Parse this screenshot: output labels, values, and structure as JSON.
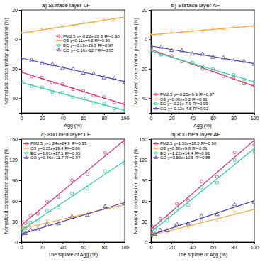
{
  "chart_data": [
    {
      "type": "scatter",
      "title": "a) Surface layer LF",
      "x_label": "Agg (%)",
      "y_label": "Normalized concentration perturbation (%)",
      "x": [
        0,
        10,
        20,
        30,
        40,
        50,
        60,
        70,
        80,
        90,
        100
      ],
      "xlim": [
        0,
        100
      ],
      "xticks": [
        0,
        20,
        40,
        60,
        80,
        100
      ],
      "ylim": [
        -50,
        20
      ],
      "yticks": [
        -40,
        -20,
        0,
        20
      ],
      "legend": "right",
      "fit_x": [
        0,
        100
      ],
      "series": [
        {
          "name": "PM2.5",
          "equation": "y=-0.22x-22.3",
          "r2": "R²=0.98",
          "color": "#e0306a",
          "marker": "circle",
          "line_style": "solid",
          "values": [
            -21.5,
            -25.2,
            -26.0,
            -29.6,
            -30.4,
            -33.9,
            -35.0,
            -38.3,
            -39.2,
            -42.8,
            -44.0
          ],
          "fit": [
            -22.3,
            -44.3
          ]
        },
        {
          "name": "O3",
          "equation": "y=0.11x+4.2",
          "r2": "R²=0.96",
          "color": "#f5a540",
          "marker": "cross",
          "line_style": "solid",
          "values": [
            4.8,
            5.0,
            6.9,
            7.2,
            9.1,
            9.4,
            11.2,
            11.6,
            13.4,
            13.8,
            15.5
          ],
          "fit": [
            4.2,
            15.2
          ]
        },
        {
          "name": "EC",
          "equation": "y=-0.19x-29.3",
          "r2": "R²=0.97",
          "color": "#2ecf9e",
          "marker": "square",
          "line_style": "solid",
          "values": [
            -28.5,
            -31.8,
            -32.6,
            -35.7,
            -36.3,
            -39.4,
            -40.1,
            -43.2,
            -44.0,
            -46.9,
            -48.0
          ],
          "fit": [
            -29.3,
            -48.3
          ]
        },
        {
          "name": "CO",
          "equation": "y=-0.16x-12.7",
          "r2": "R²=0.95",
          "color": "#4b3ba0",
          "marker": "triangle",
          "line_style": "solid",
          "values": [
            -13.3,
            -14.0,
            -16.5,
            -17.0,
            -19.8,
            -20.2,
            -22.9,
            -23.4,
            -26.1,
            -26.7,
            -29.1
          ],
          "fit": [
            -12.7,
            -28.7
          ]
        }
      ]
    },
    {
      "type": "scatter",
      "title": "b) Surface layer AF",
      "x_label": "Agg (%)",
      "y_label": "Normalized concentration perturbation (%)",
      "x": [
        0,
        10,
        20,
        30,
        40,
        50,
        60,
        70,
        80,
        90,
        100
      ],
      "xlim": [
        0,
        100
      ],
      "xticks": [
        0,
        20,
        40,
        60,
        80,
        100
      ],
      "ylim": [
        -50,
        20
      ],
      "yticks": [
        -40,
        -20,
        0,
        20
      ],
      "legend": "lower left",
      "fit_x": [
        0,
        100
      ],
      "series": [
        {
          "name": "PM2.5",
          "equation": "y=-0.25x-6.9",
          "r2": "R²=0.97",
          "color": "#e0306a",
          "marker": "circle",
          "line_style": "solid",
          "values": [
            -6.2,
            -10.0,
            -11.3,
            -15.0,
            -16.3,
            -20.1,
            -21.3,
            -25.0,
            -26.2,
            -30.1,
            -31.5
          ],
          "fit": [
            -6.9,
            -31.9
          ]
        },
        {
          "name": "O3",
          "equation": "y=0.06x+3.2",
          "r2": "R²=0.91",
          "color": "#f5a540",
          "marker": "cross",
          "line_style": "solid",
          "values": [
            3.6,
            3.5,
            4.9,
            4.7,
            6.0,
            5.9,
            7.2,
            7.0,
            8.4,
            8.2,
            9.5
          ],
          "fit": [
            3.2,
            9.2
          ]
        },
        {
          "name": "EC",
          "equation": "y=-0.21x-7.9",
          "r2": "R²=0.99",
          "color": "#2ecf9e",
          "marker": "square",
          "line_style": "solid",
          "values": [
            -7.3,
            -10.5,
            -11.6,
            -14.8,
            -15.8,
            -19.0,
            -20.0,
            -23.1,
            -24.2,
            -27.4,
            -28.6
          ],
          "fit": [
            -7.9,
            -28.9
          ]
        },
        {
          "name": "CO",
          "equation": "y=-0.12x-4.5",
          "r2": "R²=0.92",
          "color": "#4b3ba0",
          "marker": "triangle",
          "line_style": "solid",
          "values": [
            -5.0,
            -5.3,
            -7.5,
            -7.7,
            -9.9,
            -10.1,
            -12.2,
            -12.5,
            -14.7,
            -14.9,
            -16.9
          ],
          "fit": [
            -4.5,
            -16.5
          ]
        }
      ]
    },
    {
      "type": "scatter",
      "title": "c) 800 hPa layer LF",
      "x_label": "The square of Agg (%)",
      "y_label": "Normalized concentration perturbation (%)",
      "x": [
        0,
        1,
        4,
        9,
        16,
        25,
        36,
        49,
        64,
        81,
        100
      ],
      "xlim": [
        0,
        100
      ],
      "xticks": [
        0,
        20,
        40,
        60,
        80,
        100
      ],
      "ylim": [
        0,
        150
      ],
      "yticks": [
        0,
        30,
        60,
        90,
        120,
        150
      ],
      "legend": "upper left",
      "fit_x": [
        0,
        100
      ],
      "series": [
        {
          "name": "PM2.5",
          "equation": "y=1.24x+24.9",
          "r2": "R²=0.95",
          "color": "#e0306a",
          "marker": "circle",
          "line_style": "solid",
          "values": [
            23.0,
            28.5,
            27.5,
            38.9,
            41.5,
            59.2,
            66.0,
            90.1,
            99.0,
            130.2,
            145.0
          ],
          "fit": [
            24.9,
            148.9
          ]
        },
        {
          "name": "O3",
          "equation": "y=0.35x+19.4",
          "r2": "R²=0.86",
          "color": "#f5a540",
          "marker": "cross",
          "line_style": "solid",
          "values": [
            18.0,
            21.5,
            19.9,
            24.5,
            23.2,
            30.5,
            30.1,
            39.4,
            39.5,
            50.7,
            52.6
          ],
          "fit": [
            19.4,
            54.4
          ]
        },
        {
          "name": "EC",
          "equation": "y=1.01x+17.1",
          "r2": "R²=0.95",
          "color": "#2ecf9e",
          "marker": "square",
          "line_style": "solid",
          "values": [
            15.5,
            20.2,
            19.8,
            28.8,
            31.0,
            45.9,
            50.5,
            70.8,
            78.0,
            103.5,
            115.0
          ],
          "fit": [
            17.1,
            118.1
          ]
        },
        {
          "name": "CO",
          "equation": "y=0.46x+11.7",
          "r2": "R²=0.97",
          "color": "#4b3ba0",
          "marker": "triangle",
          "line_style": "solid",
          "values": [
            10.5,
            13.8,
            12.6,
            17.6,
            17.9,
            25.4,
            26.8,
            36.5,
            39.2,
            51.4,
            55.9
          ],
          "fit": [
            11.7,
            57.7
          ]
        }
      ]
    },
    {
      "type": "scatter",
      "title": "d) 800 hPa layer AF",
      "x_label": "The square of Agg (%)",
      "y_label": "Normalized concentration perturbation (%)",
      "x": [
        0,
        1,
        4,
        9,
        16,
        25,
        36,
        49,
        64,
        81,
        100
      ],
      "xlim": [
        0,
        100
      ],
      "xticks": [
        0,
        20,
        40,
        60,
        80,
        100
      ],
      "ylim": [
        0,
        150
      ],
      "yticks": [
        0,
        30,
        60,
        90,
        120,
        150
      ],
      "legend": "upper left",
      "fit_x": [
        0,
        100
      ],
      "series": [
        {
          "name": "PM2.5",
          "equation": "y=1.30x+18.5",
          "r2": "R²=0.90",
          "color": "#e0306a",
          "marker": "circle",
          "line_style": "solid",
          "values": [
            16.2,
            22.9,
            21.5,
            34.0,
            36.5,
            55.8,
            61.0,
            88.5,
            95.2,
            130.6,
            141.8
          ],
          "fit": [
            18.5,
            148.5
          ]
        },
        {
          "name": "O3",
          "equation": "y=0.38x+9.8",
          "r2": "R²=0.81",
          "color": "#f5a540",
          "marker": "cross",
          "line_style": "solid",
          "values": [
            8.5,
            12.0,
            10.4,
            15.6,
            14.2,
            22.4,
            21.3,
            31.5,
            31.8,
            44.2,
            45.3
          ],
          "fit": [
            9.8,
            47.8
          ]
        },
        {
          "name": "EC",
          "equation": "y=1.22x+14.4",
          "r2": "R²=0.91",
          "color": "#2ecf9e",
          "marker": "square",
          "line_style": "solid",
          "values": [
            12.8,
            18.1,
            17.9,
            28.6,
            31.2,
            49.5,
            54.1,
            79.8,
            86.7,
            119.5,
            131.0
          ],
          "fit": [
            14.4,
            136.4
          ]
        },
        {
          "name": "CO",
          "equation": "y=0.50x+10.5",
          "r2": "R²=0.88",
          "color": "#4b3ba0",
          "marker": "triangle",
          "line_style": "solid",
          "values": [
            9.4,
            12.9,
            11.6,
            17.2,
            16.9,
            25.8,
            26.5,
            38.0,
            40.1,
            54.6,
            58.2
          ],
          "fit": [
            10.5,
            60.5
          ]
        }
      ]
    }
  ]
}
